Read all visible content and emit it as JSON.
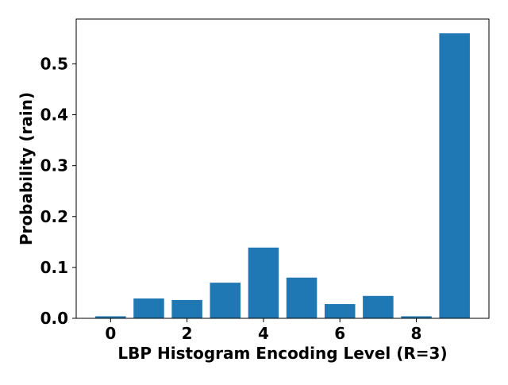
{
  "chart_data": {
    "type": "bar",
    "title": "",
    "xlabel": "LBP Histogram Encoding Level (R=3)",
    "ylabel": "Probability (rain)",
    "x": [
      0,
      1,
      2,
      3,
      4,
      5,
      6,
      7,
      8,
      9
    ],
    "values": [
      0.004,
      0.039,
      0.036,
      0.07,
      0.139,
      0.08,
      0.028,
      0.044,
      0.004,
      0.56
    ],
    "xlim": [
      -0.9,
      9.9
    ],
    "ylim": [
      0,
      0.588
    ],
    "xticks": [
      0,
      2,
      4,
      6,
      8
    ],
    "xtick_labels": [
      "0",
      "2",
      "4",
      "6",
      "8"
    ],
    "yticks": [
      0.0,
      0.1,
      0.2,
      0.3,
      0.4,
      0.5
    ],
    "ytick_labels": [
      "0.0",
      "0.1",
      "0.2",
      "0.3",
      "0.4",
      "0.5"
    ],
    "grid": false,
    "legend": "none",
    "bar_color": "#1f77b4"
  }
}
